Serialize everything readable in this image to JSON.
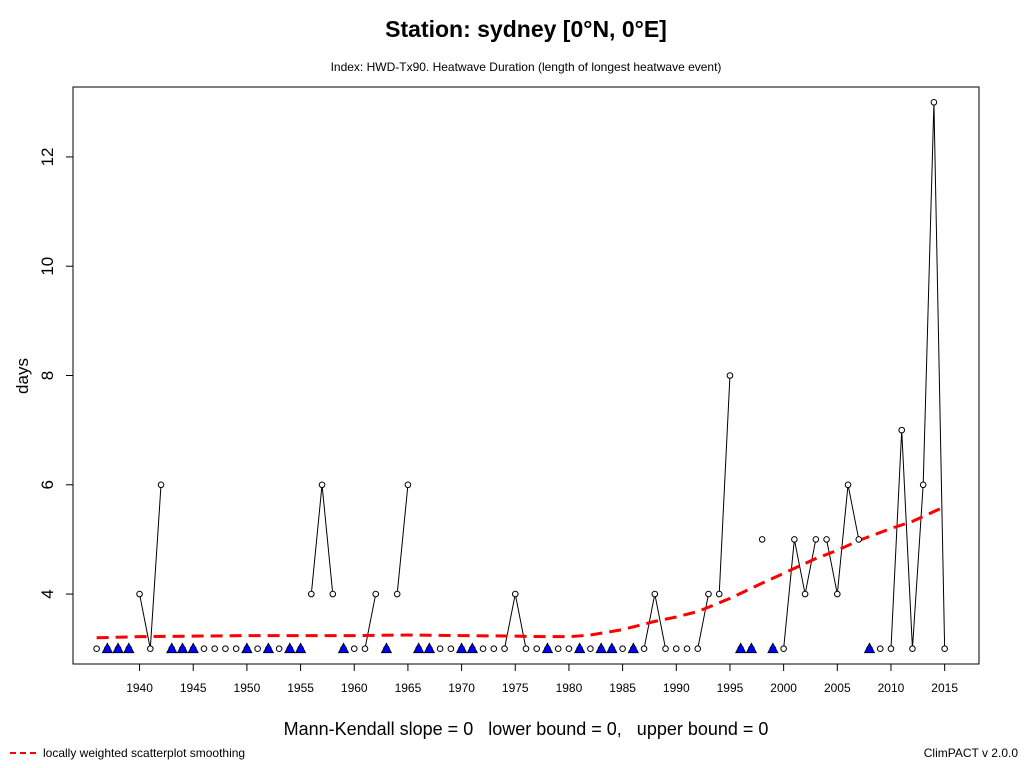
{
  "chart_data": {
    "type": "line",
    "title": "Station: sydney [0°N, 0°E]",
    "subtitle": "Index: HWD-Tx90. Heatwave Duration (length of longest heatwave event)",
    "xlabel": "",
    "ylabel": "days",
    "xlim": [
      1933.8,
      2018.2
    ],
    "ylim": [
      2.72,
      13.28
    ],
    "x_ticks": [
      "1940",
      "1945",
      "1950",
      "1955",
      "1960",
      "1965",
      "1970",
      "1975",
      "1980",
      "1985",
      "1990",
      "1995",
      "2000",
      "2005",
      "2010",
      "2015"
    ],
    "y_ticks": [
      "4",
      "6",
      "8",
      "10",
      "12"
    ],
    "series": [
      {
        "values": [
          [
            1936,
            3
          ],
          [
            1937,
            3
          ],
          [
            1938,
            3
          ],
          [
            1939,
            3
          ],
          [
            1940,
            4
          ],
          [
            1941,
            3
          ],
          [
            1942,
            6
          ],
          [
            1943,
            3
          ],
          [
            1944,
            3
          ],
          [
            1945,
            3
          ],
          [
            1946,
            3
          ],
          [
            1947,
            3
          ],
          [
            1948,
            3
          ],
          [
            1949,
            3
          ],
          [
            1950,
            3
          ],
          [
            1951,
            3
          ],
          [
            1952,
            3
          ],
          [
            1953,
            3
          ],
          [
            1954,
            3
          ],
          [
            1955,
            3
          ],
          [
            1956,
            4
          ],
          [
            1957,
            6
          ],
          [
            1958,
            4
          ],
          [
            1959,
            3
          ],
          [
            1960,
            3
          ],
          [
            1961,
            3
          ],
          [
            1962,
            4
          ],
          [
            1963,
            3
          ],
          [
            1964,
            4
          ],
          [
            1965,
            6
          ],
          [
            1966,
            3
          ],
          [
            1967,
            3
          ],
          [
            1968,
            3
          ],
          [
            1969,
            3
          ],
          [
            1970,
            3
          ],
          [
            1971,
            3
          ],
          [
            1972,
            3
          ],
          [
            1973,
            3
          ],
          [
            1974,
            3
          ],
          [
            1975,
            4
          ],
          [
            1976,
            3
          ],
          [
            1977,
            3
          ],
          [
            1978,
            3
          ],
          [
            1979,
            3
          ],
          [
            1980,
            3
          ],
          [
            1981,
            3
          ],
          [
            1982,
            3
          ],
          [
            1983,
            3
          ],
          [
            1984,
            3
          ],
          [
            1985,
            3
          ],
          [
            1986,
            3
          ],
          [
            1987,
            3
          ],
          [
            1988,
            4
          ],
          [
            1989,
            3
          ],
          [
            1990,
            3
          ],
          [
            1991,
            3
          ],
          [
            1992,
            3
          ],
          [
            1993,
            4
          ],
          [
            1994,
            4
          ],
          [
            1995,
            8
          ],
          [
            1996,
            3
          ],
          [
            1997,
            3
          ],
          [
            1998,
            5
          ],
          [
            1999,
            3
          ],
          [
            2000,
            3
          ],
          [
            2001,
            5
          ],
          [
            2002,
            4
          ],
          [
            2003,
            5
          ],
          [
            2004,
            5
          ],
          [
            2005,
            4
          ],
          [
            2006,
            6
          ],
          [
            2007,
            5
          ],
          [
            2008,
            3
          ],
          [
            2009,
            3
          ],
          [
            2010,
            3
          ],
          [
            2011,
            7
          ],
          [
            2012,
            3
          ],
          [
            2013,
            6
          ],
          [
            2014,
            13
          ],
          [
            2015,
            3
          ]
        ],
        "line_segments": [
          [
            [
              1940,
              4
            ],
            [
              1941,
              3
            ],
            [
              1942,
              6
            ]
          ],
          [
            [
              1956,
              4
            ],
            [
              1957,
              6
            ],
            [
              1958,
              4
            ]
          ],
          [
            [
              1962,
              4
            ],
            [
              1961,
              3
            ]
          ],
          [
            [
              1964,
              4
            ],
            [
              1965,
              6
            ]
          ],
          [
            [
              1974,
              3
            ],
            [
              1975,
              4
            ],
            [
              1976,
              3
            ]
          ],
          [
            [
              1987,
              3
            ],
            [
              1988,
              4
            ],
            [
              1989,
              3
            ]
          ],
          [
            [
              1992,
              3
            ],
            [
              1993,
              4
            ]
          ],
          [
            [
              1994,
              4
            ],
            [
              1995,
              8
            ]
          ],
          [
            [
              2000,
              3
            ],
            [
              2001,
              5
            ],
            [
              2002,
              4
            ],
            [
              2003,
              5
            ]
          ],
          [
            [
              2004,
              5
            ],
            [
              2005,
              4
            ],
            [
              2006,
              6
            ],
            [
              2007,
              5
            ]
          ],
          [
            [
              2010,
              3
            ],
            [
              2011,
              7
            ],
            [
              2012,
              3
            ],
            [
              2013,
              6
            ],
            [
              2014,
              13
            ],
            [
              2015,
              3
            ]
          ]
        ],
        "missing_years_triangles": [
          1937,
          1938,
          1939,
          1943,
          1944,
          1945,
          1950,
          1952,
          1954,
          1955,
          1959,
          1963,
          1966,
          1967,
          1970,
          1971,
          1978,
          1981,
          1983,
          1984,
          1986,
          1996,
          1997,
          1999,
          2008
        ]
      },
      {
        "name": "locally weighted scatterplot smoothing",
        "style": "dashed",
        "color": "#ff0000",
        "values": [
          [
            1936,
            3.2
          ],
          [
            1940,
            3.22
          ],
          [
            1945,
            3.23
          ],
          [
            1950,
            3.24
          ],
          [
            1955,
            3.24
          ],
          [
            1960,
            3.24
          ],
          [
            1965,
            3.25
          ],
          [
            1970,
            3.24
          ],
          [
            1975,
            3.23
          ],
          [
            1978,
            3.22
          ],
          [
            1980,
            3.22
          ],
          [
            1982,
            3.25
          ],
          [
            1985,
            3.35
          ],
          [
            1988,
            3.5
          ],
          [
            1990,
            3.58
          ],
          [
            1992,
            3.68
          ],
          [
            1995,
            3.92
          ],
          [
            1998,
            4.2
          ],
          [
            2000,
            4.38
          ],
          [
            2003,
            4.65
          ],
          [
            2005,
            4.8
          ],
          [
            2007,
            4.98
          ],
          [
            2010,
            5.2
          ],
          [
            2012,
            5.33
          ],
          [
            2015,
            5.6
          ]
        ]
      }
    ],
    "colors": {
      "points": "#000000",
      "triangles": "#0000ff",
      "smooth": "#ff0000"
    }
  },
  "footer": {
    "stats": "Mann-Kendall slope = 0   lower bound = 0,   upper bound = 0",
    "legend_label": "locally weighted scatterplot smoothing",
    "credit": "ClimPACT v 2.0.0"
  }
}
